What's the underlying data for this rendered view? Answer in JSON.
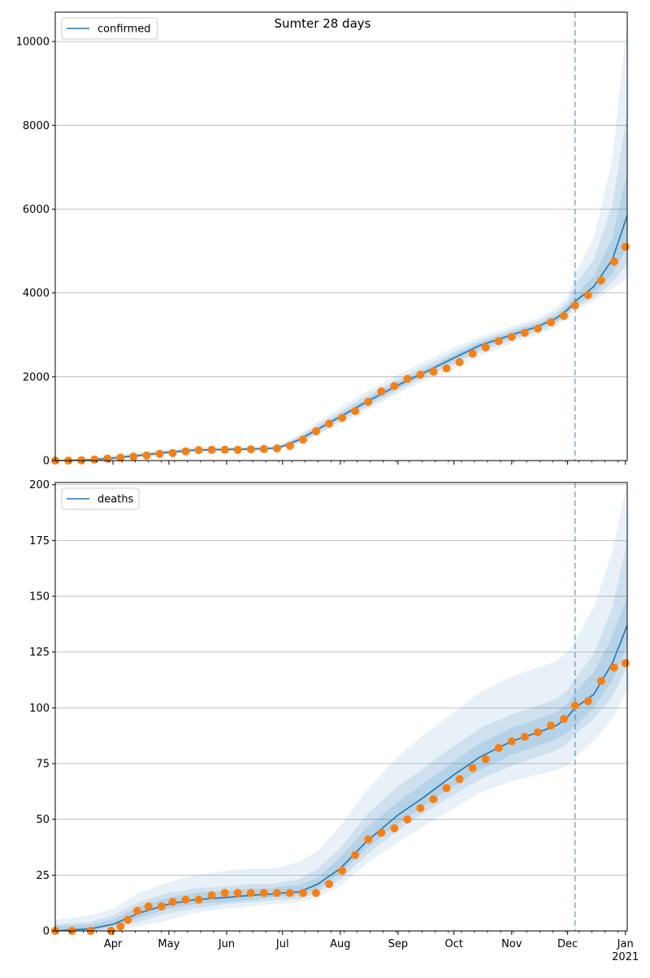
{
  "figure": {
    "title": "Sumter 28 days"
  },
  "colors": {
    "fit": "#1f77b4",
    "band": "#1f77b4",
    "observed": "#ff7f0e",
    "grid": "#b0b0b0",
    "vline": "#1f77b4"
  },
  "chart_data": [
    {
      "type": "line",
      "title": "",
      "legend": {
        "placement": "top-left",
        "entries": [
          "confirmed"
        ]
      },
      "xlabel": "",
      "ylabel": "",
      "xlim": [
        "2020-03-01",
        "2021-01-02"
      ],
      "x_tick_labels": [],
      "ylim": [
        0,
        10700
      ],
      "yticks": [
        0,
        2000,
        4000,
        6000,
        8000,
        10000
      ],
      "grid": "y",
      "forecast_start": "2020-12-05",
      "series": [
        {
          "name": "confirmed",
          "kind": "model fit",
          "points": [
            [
              "2020-03-01",
              0
            ],
            [
              "2020-03-20",
              20
            ],
            [
              "2020-04-01",
              60
            ],
            [
              "2020-04-15",
              120
            ],
            [
              "2020-05-01",
              200
            ],
            [
              "2020-05-15",
              250
            ],
            [
              "2020-06-01",
              265
            ],
            [
              "2020-06-15",
              275
            ],
            [
              "2020-06-25",
              290
            ],
            [
              "2020-07-01",
              340
            ],
            [
              "2020-07-10",
              500
            ],
            [
              "2020-07-20",
              750
            ],
            [
              "2020-08-01",
              1050
            ],
            [
              "2020-08-15",
              1400
            ],
            [
              "2020-09-01",
              1800
            ],
            [
              "2020-09-15",
              2100
            ],
            [
              "2020-10-01",
              2450
            ],
            [
              "2020-10-15",
              2750
            ],
            [
              "2020-11-01",
              3000
            ],
            [
              "2020-11-15",
              3200
            ],
            [
              "2020-11-25",
              3400
            ],
            [
              "2020-12-01",
              3600
            ],
            [
              "2020-12-05",
              3800
            ],
            [
              "2020-12-15",
              4150
            ],
            [
              "2020-12-25",
              4800
            ],
            [
              "2021-01-02",
              5850
            ]
          ],
          "bands": [
            {
              "alpha": 0.1,
              "lower": [
                0,
                0,
                20,
                60,
                140,
                200,
                220,
                235,
                250,
                290,
                400,
                600,
                880,
                1200,
                1600,
                1900,
                2200,
                2500,
                2800,
                3000,
                3200,
                3400,
                3600,
                3800,
                4100,
                4350
              ],
              "upper": [
                0,
                60,
                130,
                200,
                280,
                320,
                330,
                340,
                360,
                410,
                620,
                930,
                1250,
                1650,
                2050,
                2350,
                2700,
                2950,
                3200,
                3400,
                3650,
                3900,
                4450,
                5300,
                7200,
                10500
              ]
            },
            {
              "alpha": 0.12,
              "lower": [
                0,
                5,
                35,
                85,
                160,
                215,
                235,
                250,
                265,
                305,
                430,
                650,
                940,
                1270,
                1670,
                1980,
                2300,
                2600,
                2870,
                3070,
                3270,
                3470,
                3660,
                3880,
                4250,
                4700
              ],
              "upper": [
                0,
                40,
                100,
                170,
                250,
                295,
                305,
                315,
                330,
                385,
                580,
                860,
                1170,
                1550,
                1950,
                2250,
                2600,
                2880,
                3120,
                3330,
                3550,
                3780,
                4200,
                4800,
                6100,
                8300
              ]
            },
            {
              "alpha": 0.14,
              "lower": [
                0,
                10,
                45,
                100,
                180,
                230,
                250,
                262,
                275,
                320,
                460,
                700,
                1000,
                1330,
                1730,
                2040,
                2370,
                2670,
                2930,
                3130,
                3330,
                3530,
                3720,
                3980,
                4450,
                5100
              ],
              "upper": [
                0,
                30,
                80,
                145,
                225,
                275,
                285,
                292,
                308,
                365,
                545,
                805,
                1110,
                1480,
                1880,
                2170,
                2530,
                2820,
                3070,
                3270,
                3470,
                3700,
                3950,
                4400,
                5300,
                6900
              ]
            }
          ]
        },
        {
          "name": "",
          "kind": "observed",
          "points": [
            [
              "2020-03-01",
              0
            ],
            [
              "2020-03-08",
              0
            ],
            [
              "2020-03-15",
              5
            ],
            [
              "2020-03-22",
              25
            ],
            [
              "2020-03-29",
              45
            ],
            [
              "2020-04-05",
              70
            ],
            [
              "2020-04-12",
              95
            ],
            [
              "2020-04-19",
              120
            ],
            [
              "2020-04-26",
              160
            ],
            [
              "2020-05-03",
              180
            ],
            [
              "2020-05-10",
              220
            ],
            [
              "2020-05-17",
              250
            ],
            [
              "2020-05-24",
              255
            ],
            [
              "2020-05-31",
              260
            ],
            [
              "2020-06-07",
              258
            ],
            [
              "2020-06-14",
              270
            ],
            [
              "2020-06-21",
              275
            ],
            [
              "2020-06-28",
              290
            ],
            [
              "2020-07-05",
              350
            ],
            [
              "2020-07-12",
              500
            ],
            [
              "2020-07-19",
              700
            ],
            [
              "2020-07-26",
              880
            ],
            [
              "2020-08-02",
              1020
            ],
            [
              "2020-08-09",
              1180
            ],
            [
              "2020-08-16",
              1400
            ],
            [
              "2020-08-23",
              1650
            ],
            [
              "2020-08-30",
              1780
            ],
            [
              "2020-09-06",
              1950
            ],
            [
              "2020-09-13",
              2050
            ],
            [
              "2020-09-20",
              2120
            ],
            [
              "2020-09-27",
              2200
            ],
            [
              "2020-10-04",
              2350
            ],
            [
              "2020-10-11",
              2550
            ],
            [
              "2020-10-18",
              2700
            ],
            [
              "2020-10-25",
              2850
            ],
            [
              "2020-11-01",
              2950
            ],
            [
              "2020-11-08",
              3050
            ],
            [
              "2020-11-15",
              3150
            ],
            [
              "2020-11-22",
              3300
            ],
            [
              "2020-11-29",
              3450
            ],
            [
              "2020-12-05",
              3700
            ],
            [
              "2020-12-12",
              3950
            ],
            [
              "2020-12-19",
              4300
            ],
            [
              "2020-12-26",
              4750
            ],
            [
              "2021-01-01",
              5100
            ]
          ]
        }
      ]
    },
    {
      "type": "line",
      "title": "",
      "legend": {
        "placement": "top-left",
        "entries": [
          "deaths"
        ]
      },
      "xlabel": "",
      "ylabel": "",
      "xlim": [
        "2020-03-01",
        "2021-01-02"
      ],
      "x_tick_labels": [
        "Apr",
        "May",
        "Jun",
        "Jul",
        "Aug",
        "Sep",
        "Oct",
        "Nov",
        "Dec",
        "Jan",
        "2021"
      ],
      "ylim": [
        0,
        201
      ],
      "yticks": [
        0,
        25,
        50,
        75,
        100,
        125,
        150,
        175,
        200
      ],
      "grid": "y",
      "forecast_start": "2020-12-05",
      "series": [
        {
          "name": "deaths",
          "kind": "model fit",
          "points": [
            [
              "2020-03-01",
              0
            ],
            [
              "2020-03-20",
              1
            ],
            [
              "2020-04-01",
              3
            ],
            [
              "2020-04-15",
              8
            ],
            [
              "2020-05-01",
              12
            ],
            [
              "2020-05-15",
              14
            ],
            [
              "2020-06-01",
              15
            ],
            [
              "2020-06-15",
              16
            ],
            [
              "2020-06-25",
              16.5
            ],
            [
              "2020-07-01",
              17
            ],
            [
              "2020-07-10",
              17.5
            ],
            [
              "2020-07-20",
              21
            ],
            [
              "2020-08-01",
              28
            ],
            [
              "2020-08-15",
              40
            ],
            [
              "2020-09-01",
              52
            ],
            [
              "2020-09-15",
              60
            ],
            [
              "2020-10-01",
              70
            ],
            [
              "2020-10-15",
              78
            ],
            [
              "2020-11-01",
              85
            ],
            [
              "2020-11-15",
              89
            ],
            [
              "2020-11-25",
              92
            ],
            [
              "2020-12-01",
              96
            ],
            [
              "2020-12-05",
              100
            ],
            [
              "2020-12-15",
              106
            ],
            [
              "2020-12-25",
              120
            ],
            [
              "2021-01-02",
              137
            ]
          ],
          "bands": [
            {
              "alpha": 0.1,
              "lower": [
                0,
                0,
                0,
                2,
                5,
                8,
                10,
                11,
                12,
                12,
                13,
                15,
                20,
                30,
                40,
                47,
                55,
                62,
                67,
                70,
                72,
                74,
                78,
                85,
                95,
                108
              ],
              "upper": [
                5,
                7,
                10,
                17,
                22,
                25,
                27,
                28,
                28,
                29,
                31,
                36,
                47,
                63,
                78,
                88,
                98,
                107,
                114,
                118,
                121,
                125,
                130,
                145,
                170,
                201
              ]
            },
            {
              "alpha": 0.12,
              "lower": [
                0,
                0,
                1,
                4,
                8,
                10,
                12,
                13,
                13.5,
                14,
                14.5,
                17,
                23,
                34,
                45,
                53,
                61,
                68,
                74,
                78,
                81,
                84,
                88,
                95,
                105,
                118
              ],
              "upper": [
                3,
                4,
                7,
                13,
                17,
                19,
                20,
                21,
                21,
                22,
                23,
                28,
                37,
                52,
                65,
                73,
                83,
                91,
                97,
                101,
                104,
                108,
                113,
                124,
                145,
                175
              ]
            },
            {
              "alpha": 0.14,
              "lower": [
                0,
                0,
                2,
                6,
                10,
                12,
                13,
                14,
                15,
                15.5,
                16,
                19,
                26,
                37,
                48,
                56,
                65,
                72,
                79,
                83,
                86,
                89,
                92,
                100,
                112,
                128
              ],
              "upper": [
                2,
                3,
                5,
                11,
                15,
                17,
                18,
                19,
                19,
                20,
                20.5,
                24,
                33,
                46,
                58,
                66,
                76,
                84,
                91,
                95,
                98,
                102,
                107,
                116,
                132,
                150
              ]
            }
          ]
        },
        {
          "name": "",
          "kind": "observed",
          "points": [
            [
              "2020-03-01",
              0
            ],
            [
              "2020-03-10",
              0
            ],
            [
              "2020-03-20",
              0
            ],
            [
              "2020-03-31",
              0
            ],
            [
              "2020-04-05",
              2
            ],
            [
              "2020-04-09",
              5
            ],
            [
              "2020-04-14",
              9
            ],
            [
              "2020-04-20",
              11
            ],
            [
              "2020-04-27",
              11
            ],
            [
              "2020-05-03",
              13
            ],
            [
              "2020-05-10",
              14
            ],
            [
              "2020-05-17",
              14
            ],
            [
              "2020-05-24",
              16
            ],
            [
              "2020-05-31",
              17
            ],
            [
              "2020-06-07",
              17
            ],
            [
              "2020-06-14",
              17
            ],
            [
              "2020-06-21",
              17
            ],
            [
              "2020-06-28",
              17
            ],
            [
              "2020-07-05",
              17
            ],
            [
              "2020-07-12",
              17
            ],
            [
              "2020-07-19",
              17
            ],
            [
              "2020-07-26",
              21
            ],
            [
              "2020-08-02",
              27
            ],
            [
              "2020-08-09",
              34
            ],
            [
              "2020-08-16",
              41
            ],
            [
              "2020-08-23",
              44
            ],
            [
              "2020-08-30",
              46
            ],
            [
              "2020-09-06",
              50
            ],
            [
              "2020-09-13",
              55
            ],
            [
              "2020-09-20",
              59
            ],
            [
              "2020-09-27",
              64
            ],
            [
              "2020-10-04",
              68
            ],
            [
              "2020-10-11",
              73
            ],
            [
              "2020-10-18",
              77
            ],
            [
              "2020-10-25",
              82
            ],
            [
              "2020-11-01",
              85
            ],
            [
              "2020-11-08",
              87
            ],
            [
              "2020-11-15",
              89
            ],
            [
              "2020-11-22",
              92
            ],
            [
              "2020-11-29",
              95
            ],
            [
              "2020-12-05",
              101
            ],
            [
              "2020-12-12",
              103
            ],
            [
              "2020-12-19",
              112
            ],
            [
              "2020-12-26",
              118
            ],
            [
              "2021-01-01",
              120
            ]
          ]
        }
      ]
    }
  ]
}
